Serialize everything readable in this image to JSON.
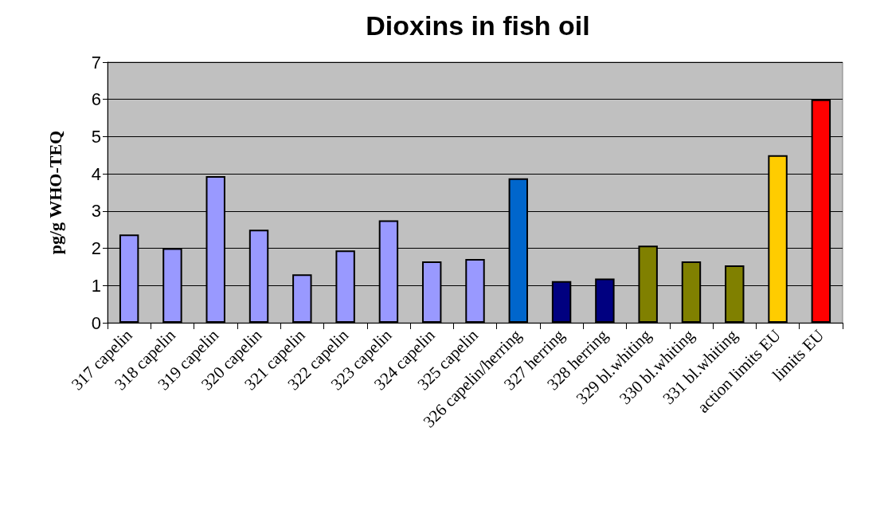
{
  "chart_data": {
    "type": "bar",
    "title": "Dioxins in fish oil",
    "ylabel": "pg/g WHO-TEQ",
    "categories": [
      "317 capelin",
      "318 capelin",
      "319 capelin",
      "320 capelin",
      "321 capelin",
      "322 capelin",
      "323 capelin",
      "324 capelin",
      "325 capelin",
      "326 capelin/herring",
      "327 herring",
      "328 herring",
      "329 bl.whiting",
      "330 bl.whiting",
      "331 bl.whiting",
      "action limits EU",
      "limits EU"
    ],
    "values": [
      2.37,
      2.0,
      3.94,
      2.5,
      1.3,
      1.94,
      2.75,
      1.65,
      1.71,
      3.88,
      1.12,
      1.19,
      2.07,
      1.65,
      1.54,
      4.5,
      6.0
    ],
    "colors": [
      "#9999ff",
      "#9999ff",
      "#9999ff",
      "#9999ff",
      "#9999ff",
      "#9999ff",
      "#9999ff",
      "#9999ff",
      "#9999ff",
      "#0066cc",
      "#000080",
      "#000080",
      "#808000",
      "#808000",
      "#808000",
      "#ffcc00",
      "#ff0000"
    ],
    "ylim": [
      0,
      7
    ],
    "yticks": [
      0,
      1,
      2,
      3,
      4,
      5,
      6,
      7
    ],
    "grid": "y"
  }
}
